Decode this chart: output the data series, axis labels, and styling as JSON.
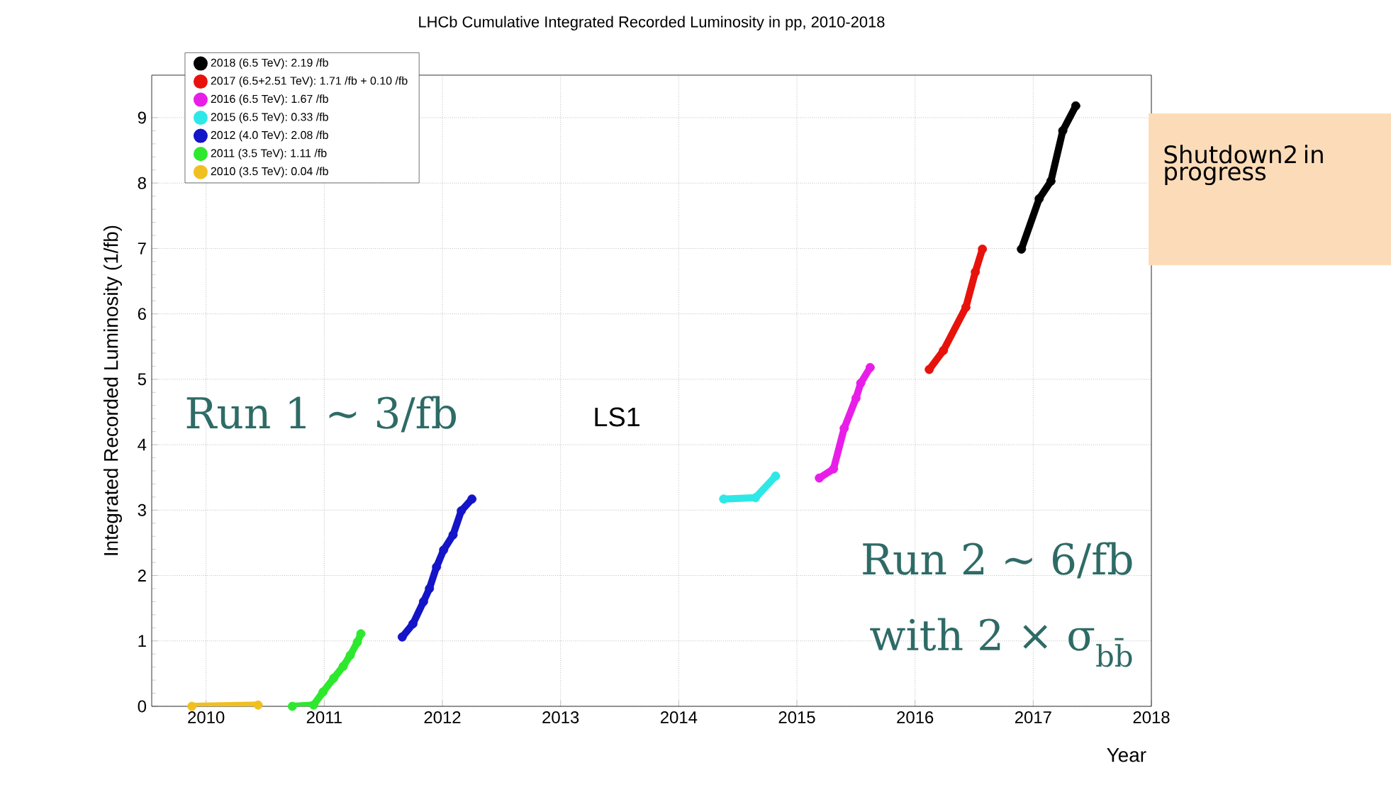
{
  "chart_data": {
    "type": "line",
    "title": "LHCb Cumulative Integrated Recorded Luminosity in pp, 2010-2018",
    "xlabel": "Year",
    "ylabel": "Integrated Recorded Luminosity (1/fb)",
    "xlim": [
      2009.54,
      2018
    ],
    "xticks": [
      2010,
      2011,
      2012,
      2013,
      2014,
      2015,
      2016,
      2017,
      2018
    ],
    "ylim": [
      0,
      9.65
    ],
    "yticks": [
      0,
      1,
      2,
      3,
      4,
      5,
      6,
      7,
      8,
      9
    ],
    "grid": true,
    "legend": "top left",
    "marker": "circle",
    "series": [
      {
        "name": "2018 (6.5 TeV): 2.19 /fb",
        "color": "#000000",
        "x": [
          2016.9,
          2017.05,
          2017.15,
          2017.25,
          2017.36
        ],
        "values": [
          6.99,
          7.76,
          8.03,
          8.8,
          9.18
        ]
      },
      {
        "name": "2017 (6.5+2.51 TeV): 1.71 /fb + 0.10 /fb",
        "color": "#e8120c",
        "x": [
          2016.12,
          2016.24,
          2016.43,
          2016.51,
          2016.57
        ],
        "values": [
          5.15,
          5.44,
          6.1,
          6.64,
          6.99
        ]
      },
      {
        "name": "2016 (6.5 TeV): 1.67 /fb",
        "color": "#e81ee8",
        "x": [
          2015.19,
          2015.31,
          2015.4,
          2015.5,
          2015.54,
          2015.62
        ],
        "values": [
          3.49,
          3.63,
          4.25,
          4.71,
          4.94,
          5.18
        ]
      },
      {
        "name": "2015 (6.5 TeV): 0.33 /fb",
        "color": "#2ee8e8",
        "x": [
          2014.38,
          2014.65,
          2014.82
        ],
        "values": [
          3.17,
          3.19,
          3.52
        ]
      },
      {
        "name": "2012 (4.0 TeV): 2.08 /fb",
        "color": "#1414c8",
        "x": [
          2011.66,
          2011.75,
          2011.84,
          2011.89,
          2011.95,
          2012.01,
          2012.09,
          2012.16,
          2012.25
        ],
        "values": [
          1.06,
          1.26,
          1.6,
          1.8,
          2.13,
          2.39,
          2.62,
          2.99,
          3.17
        ]
      },
      {
        "name": "2011 (3.5 TeV): 1.11 /fb",
        "color": "#2ee82e",
        "x": [
          2010.73,
          2010.91,
          2010.99,
          2011.08,
          2011.16,
          2011.22,
          2011.28,
          2011.31
        ],
        "values": [
          0,
          0.02,
          0.22,
          0.43,
          0.61,
          0.78,
          0.98,
          1.11
        ]
      },
      {
        "name": "2010 (3.5 TeV): 0.04 /fb",
        "color": "#f0c020",
        "x": [
          2009.88,
          2010.44
        ],
        "values": [
          0,
          0.02
        ]
      }
    ],
    "annotations": [
      "Run 1  ~ 3/fb",
      "LS1",
      "Run 2  ~ 6/fb",
      "with 2 × σ$_{bb̄}$",
      "Shutdown2 in progress"
    ]
  }
}
